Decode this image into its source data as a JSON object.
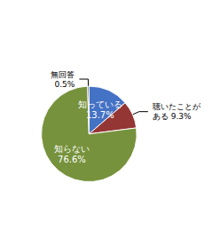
{
  "chart_data": {
    "type": "pie",
    "categories": [
      "知っている",
      "聴いたことが\nある",
      "知らない",
      "無回答"
    ],
    "values": [
      13.7,
      9.3,
      76.6,
      0.5
    ],
    "value_labels": [
      "13.7%",
      "9.3%",
      "76.6%",
      "0.5%"
    ],
    "colors": [
      "#4472c4",
      "#943634",
      "#76923c",
      "#595959"
    ],
    "data_labels": true
  }
}
